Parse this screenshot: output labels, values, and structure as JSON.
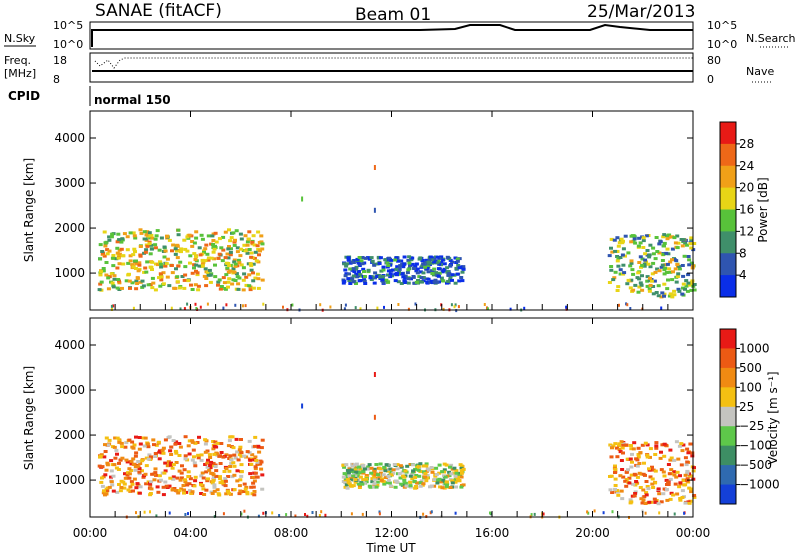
{
  "header": {
    "station": "SANAE (fitACF)",
    "beam": "Beam 01",
    "date": "25/Mar/2013"
  },
  "panels": {
    "nsky": {
      "left_label": "N.Sky",
      "ticks_left": [
        "10^5",
        "10^0"
      ],
      "ticks_right": [
        "10^5",
        "10^0"
      ],
      "right_label": "N.Search"
    },
    "freq": {
      "left_label": "Freq.",
      "unit": "[MHz]",
      "ticks_left": [
        "18",
        "8"
      ],
      "ticks_right": [
        "80",
        "0"
      ],
      "right_label": "Nave"
    },
    "cpid": {
      "left_label": "CPID",
      "mode": "normal 150"
    }
  },
  "chart_data": [
    {
      "type": "heatmap",
      "name": "Power",
      "ylabel": "Slant Range [km]",
      "xlabel": "Time UT",
      "x_ticks": [
        "00:00",
        "04:00",
        "08:00",
        "12:00",
        "16:00",
        "20:00",
        "00:00"
      ],
      "y_ticks": [
        "1000",
        "2000",
        "3000",
        "4000"
      ],
      "ylim": [
        180,
        4600
      ],
      "xlim_hours": [
        0,
        24
      ],
      "colorbar": {
        "label": "Power [dB]",
        "ticks": [
          "4",
          "8",
          "12",
          "16",
          "20",
          "24",
          "28"
        ],
        "colors": [
          "#0a2ee8",
          "#2f55b0",
          "#3f8f6a",
          "#58c23a",
          "#e8d516",
          "#f0a018",
          "#ee6818",
          "#e81a16"
        ]
      },
      "regions": [
        {
          "t": [
            0.3,
            6.8
          ],
          "r": [
            650,
            2000
          ],
          "level": 4
        },
        {
          "t": [
            10.0,
            14.8
          ],
          "r": [
            800,
            1400
          ],
          "level": 1
        },
        {
          "t": [
            20.6,
            24.0
          ],
          "r": [
            500,
            1900
          ],
          "level": 3
        }
      ],
      "spots": [
        {
          "t": 8.4,
          "r": 2700,
          "level": 3
        },
        {
          "t": 11.3,
          "r": 3400,
          "level": 6
        },
        {
          "t": 11.3,
          "r": 2450,
          "level": 1
        }
      ]
    },
    {
      "type": "heatmap",
      "name": "Velocity",
      "ylabel": "Slant Range [km]",
      "xlabel": "Time UT",
      "x_ticks": [
        "00:00",
        "04:00",
        "08:00",
        "12:00",
        "16:00",
        "20:00",
        "00:00"
      ],
      "y_ticks": [
        "1000",
        "2000",
        "3000",
        "4000"
      ],
      "ylim": [
        180,
        4600
      ],
      "xlim_hours": [
        0,
        24
      ],
      "colorbar": {
        "label": "Velocity [m s⁻¹]",
        "ticks": [
          "1000",
          "500",
          "100",
          "25",
          "-25",
          "-100",
          "-500",
          "-1000"
        ],
        "colors": [
          "#1440d8",
          "#2f6ab0",
          "#3d8e64",
          "#5ec84a",
          "#c4c4c0",
          "#f4c012",
          "#f08a12",
          "#ec5a14",
          "#e81a16"
        ]
      },
      "regions": [
        {
          "t": [
            0.3,
            6.8
          ],
          "r": [
            700,
            2000
          ],
          "level": 6
        },
        {
          "t": [
            10.0,
            14.8
          ],
          "r": [
            850,
            1400
          ],
          "level": 4
        },
        {
          "t": [
            20.6,
            24.0
          ],
          "r": [
            500,
            1900
          ],
          "level": 6
        }
      ],
      "spots": [
        {
          "t": 8.4,
          "r": 2700,
          "level": 0
        },
        {
          "t": 11.3,
          "r": 3400,
          "level": 8
        },
        {
          "t": 11.3,
          "r": 2450,
          "level": 7
        }
      ]
    }
  ]
}
